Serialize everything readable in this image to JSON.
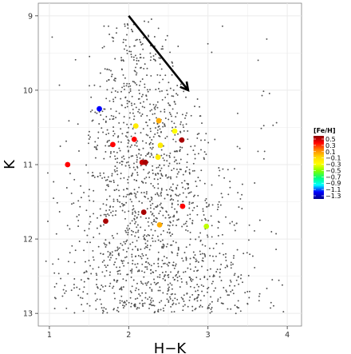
{
  "chart_data": {
    "type": "scatter",
    "xlabel": "H−K",
    "ylabel": "K",
    "xlim": [
      0.86,
      4.18
    ],
    "ylim": [
      13.17,
      8.83
    ],
    "y_reversed": true,
    "x_ticks": [
      "1",
      "2",
      "3",
      "4"
    ],
    "x_tick_values": [
      1,
      2,
      3,
      4
    ],
    "y_ticks": [
      "9",
      "10",
      "11",
      "12",
      "13"
    ],
    "y_tick_values": [
      9,
      10,
      11,
      12,
      13
    ],
    "grid": true,
    "panel_background": "#ffffff",
    "grid_color": "#ebebeb",
    "background_point_color": "#505050",
    "background_points_note": "dense field of small grey dots; count approximate",
    "arrow": {
      "from": [
        2.0,
        9.0
      ],
      "to": [
        2.75,
        10.0
      ],
      "color": "#000000"
    },
    "legend": {
      "title": "[Fe/H]",
      "placement": "right",
      "labels": [
        "0.5",
        "0.3",
        "0.1",
        "−0.1",
        "−0.3",
        "−0.5",
        "−0.7",
        "−0.9",
        "−1.1",
        "−1.3"
      ],
      "values": [
        0.5,
        0.3,
        0.1,
        -0.1,
        -0.3,
        -0.5,
        -0.7,
        -0.9,
        -1.1,
        -1.3
      ],
      "gradient_stops": [
        {
          "value": 0.5,
          "color": "#8b0000"
        },
        {
          "value": 0.3,
          "color": "#ff0000"
        },
        {
          "value": 0.1,
          "color": "#ff8000"
        },
        {
          "value": -0.1,
          "color": "#ffd700"
        },
        {
          "value": -0.3,
          "color": "#ffff00"
        },
        {
          "value": -0.5,
          "color": "#7fff00"
        },
        {
          "value": -0.7,
          "color": "#00ff7f"
        },
        {
          "value": -0.9,
          "color": "#00ffff"
        },
        {
          "value": -1.1,
          "color": "#0000ff"
        },
        {
          "value": -1.3,
          "color": "#00008b"
        }
      ]
    },
    "highlighted_points": [
      {
        "x": 1.63,
        "y": 10.25,
        "feh": -1.1
      },
      {
        "x": 1.23,
        "y": 11.0,
        "feh": 0.3
      },
      {
        "x": 1.8,
        "y": 10.73,
        "feh": 0.3
      },
      {
        "x": 2.07,
        "y": 10.66,
        "feh": 0.3
      },
      {
        "x": 2.09,
        "y": 10.48,
        "feh": -0.2
      },
      {
        "x": 2.38,
        "y": 10.41,
        "feh": 0.0
      },
      {
        "x": 2.58,
        "y": 10.55,
        "feh": -0.3
      },
      {
        "x": 2.67,
        "y": 10.67,
        "feh": 0.45
      },
      {
        "x": 2.4,
        "y": 10.74,
        "feh": -0.2
      },
      {
        "x": 2.37,
        "y": 10.9,
        "feh": -0.2
      },
      {
        "x": 2.17,
        "y": 10.97,
        "feh": 0.4
      },
      {
        "x": 2.21,
        "y": 10.97,
        "feh": 0.45
      },
      {
        "x": 2.19,
        "y": 11.64,
        "feh": 0.45
      },
      {
        "x": 2.68,
        "y": 11.56,
        "feh": 0.3
      },
      {
        "x": 1.71,
        "y": 11.76,
        "feh": 0.45
      },
      {
        "x": 2.39,
        "y": 11.81,
        "feh": 0.0
      },
      {
        "x": 2.98,
        "y": 11.83,
        "feh": -0.4
      }
    ]
  }
}
